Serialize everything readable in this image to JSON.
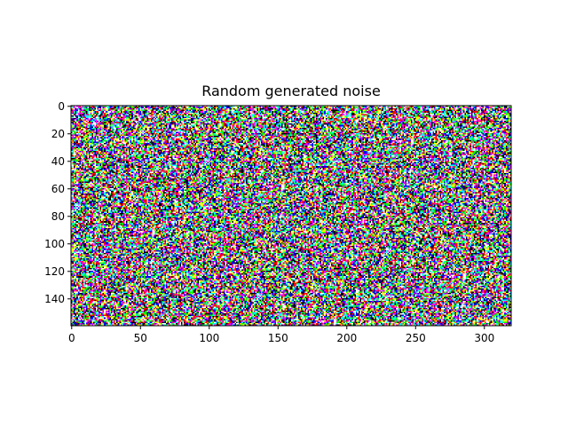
{
  "chart_data": {
    "type": "heatmap",
    "title": "Random generated noise",
    "xlabel": "",
    "ylabel": "",
    "image_width": 320,
    "image_height": 160,
    "xlim": [
      0,
      320
    ],
    "ylim": [
      160,
      0
    ],
    "x_ticks": [
      0,
      50,
      100,
      150,
      200,
      250,
      300
    ],
    "y_ticks": [
      0,
      20,
      40,
      60,
      80,
      100,
      120,
      140
    ],
    "palette": [
      "#000000",
      "#ff0000",
      "#00ff00",
      "#0000ff",
      "#ffff00",
      "#ff00ff",
      "#00ffff",
      "#ffffff"
    ],
    "grid": false,
    "legend": "none"
  }
}
